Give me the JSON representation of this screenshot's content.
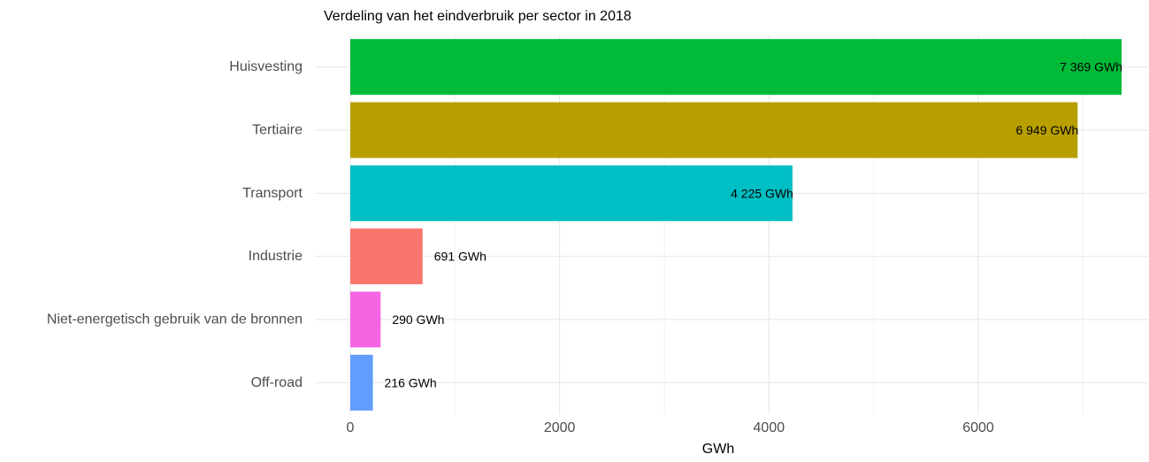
{
  "chart_data": {
    "type": "bar",
    "orientation": "horizontal",
    "title": "Verdeling van het eindverbruik per sector in 2018",
    "xlabel": "GWh",
    "ylabel": "",
    "xlim": [
      0,
      7500
    ],
    "x_ticks": [
      0,
      2000,
      4000,
      6000
    ],
    "x_tick_labels": [
      "0",
      "2000",
      "4000",
      "6000"
    ],
    "grid": true,
    "legend": "none",
    "categories": [
      "Huisvesting",
      "Tertiaire",
      "Transport",
      "Industrie",
      "Niet-energetisch gebruik van de bronnen",
      "Off-road"
    ],
    "values": [
      7369,
      6949,
      4225,
      691,
      290,
      216
    ],
    "data_labels": [
      "7 369 GWh",
      "6 949 GWh",
      "4 225 GWh",
      "691 GWh",
      "290 GWh",
      "216 GWh"
    ],
    "colors": [
      "#00BA38",
      "#B79F00",
      "#00BFC4",
      "#F8766D",
      "#F564E3",
      "#619CFF"
    ]
  }
}
